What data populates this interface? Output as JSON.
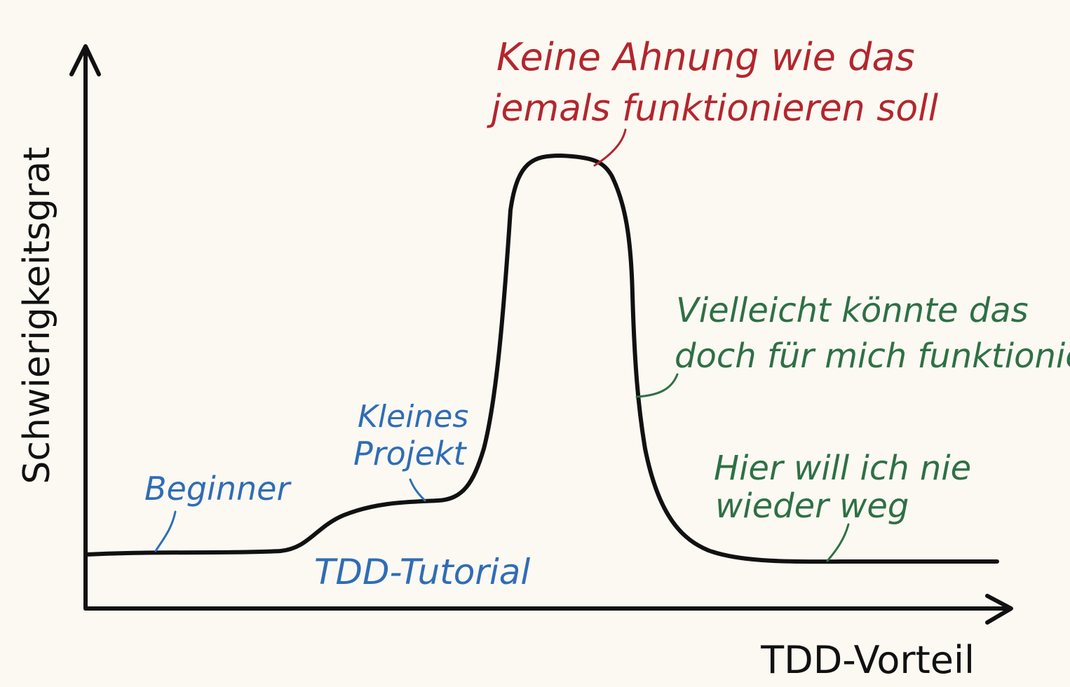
{
  "axes": {
    "x_label": "TDD-Vorteil",
    "y_label": "Schwierigkeitsgrat"
  },
  "colors": {
    "background": "#fcf9f3",
    "curve": "#111111",
    "blue": "#2f6db5",
    "red": "#b3262d",
    "green": "#2e7045"
  },
  "annotations": {
    "beginner": "Beginner",
    "kleines_projekt": [
      "Kleines",
      "Projekt"
    ],
    "tdd_tutorial": "TDD-Tutorial",
    "keine_ahnung": [
      "Keine Ahnung wie das",
      "jemals funktionieren soll"
    ],
    "vielleicht": [
      "Vielleicht könnte das",
      "doch für mich funktionieren"
    ],
    "hier_will": [
      "Hier will ich nie",
      "wieder weg"
    ]
  }
}
